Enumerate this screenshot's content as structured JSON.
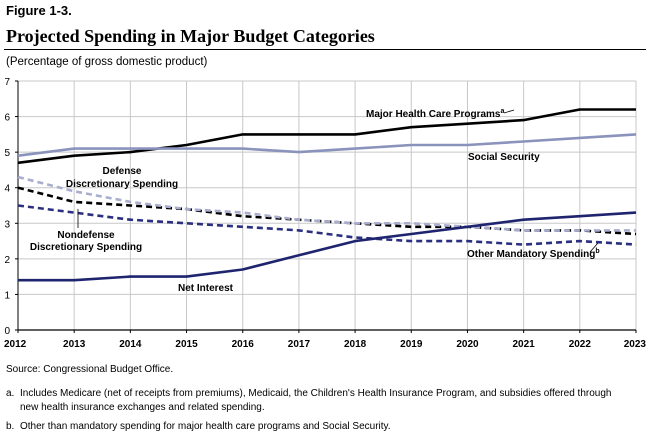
{
  "figure": {
    "label": "Figure 1-3.",
    "title": "Projected Spending in Major Budget Categories",
    "subtitle": "(Percentage of gross domestic product)"
  },
  "chart_data": {
    "type": "line",
    "title": "Projected Spending in Major Budget Categories",
    "ylabel": "Percentage of gross domestic product",
    "xlabel": "",
    "x": [
      2012,
      2013,
      2014,
      2015,
      2016,
      2017,
      2018,
      2019,
      2020,
      2021,
      2022,
      2023
    ],
    "x_tick_labels": [
      "2012",
      "2013",
      "2014",
      "2015",
      "2016",
      "2017",
      "2018",
      "2019",
      "2020",
      "2021",
      "2022",
      "2023"
    ],
    "ylim": [
      0,
      7
    ],
    "y_ticks": [
      0,
      1,
      2,
      3,
      4,
      5,
      6,
      7
    ],
    "y_tick_labels": [
      "0",
      "1",
      "2",
      "3",
      "4",
      "5",
      "6",
      "7"
    ],
    "grid": true,
    "series": [
      {
        "key": "health",
        "name": "Major Health Care Programs",
        "sup": "a",
        "color": "#000000",
        "dash": "solid",
        "values": [
          4.7,
          4.9,
          5.0,
          5.2,
          5.5,
          5.5,
          5.5,
          5.7,
          5.8,
          5.9,
          6.2,
          6.2
        ]
      },
      {
        "key": "ss",
        "name": "Social Security",
        "sup": "",
        "color": "#8a93bc",
        "dash": "solid",
        "values": [
          4.9,
          5.1,
          5.1,
          5.1,
          5.1,
          5.0,
          5.1,
          5.2,
          5.2,
          5.3,
          5.4,
          5.5
        ]
      },
      {
        "key": "defense",
        "name": "Defense Discretionary Spending",
        "sup": "",
        "color": "#000000",
        "dash": "dashed",
        "values": [
          4.0,
          3.6,
          3.5,
          3.4,
          3.2,
          3.1,
          3.0,
          2.9,
          2.9,
          2.8,
          2.8,
          2.7
        ]
      },
      {
        "key": "nondefense",
        "name": "Nondefense Discretionary Spending",
        "sup": "",
        "color": "#a9aecf",
        "dash": "dashed",
        "values": [
          4.3,
          3.9,
          3.6,
          3.4,
          3.3,
          3.1,
          3.0,
          3.0,
          2.9,
          2.8,
          2.8,
          2.8
        ]
      },
      {
        "key": "other",
        "name": "Other Mandatory Spending",
        "sup": "b",
        "color": "#2a2f80",
        "dash": "dashed",
        "values": [
          3.5,
          3.3,
          3.1,
          3.0,
          2.9,
          2.8,
          2.6,
          2.5,
          2.5,
          2.4,
          2.5,
          2.4
        ]
      },
      {
        "key": "interest",
        "name": "Net Interest",
        "sup": "",
        "color": "#1f246e",
        "dash": "solid",
        "values": [
          1.4,
          1.4,
          1.5,
          1.5,
          1.7,
          2.1,
          2.5,
          2.7,
          2.9,
          3.1,
          3.2,
          3.3
        ]
      }
    ],
    "annotations": {
      "health": "Major Health Care Programs",
      "health_sup": "a",
      "ss": "Social Security",
      "defense_line1": "Defense",
      "defense_line2": "Discretionary Spending",
      "nondefense_line1": "Nondefense",
      "nondefense_line2": "Discretionary Spending",
      "other": "Other Mandatory Spending",
      "other_sup": "b",
      "interest": "Net Interest"
    }
  },
  "source": "Source:   Congressional Budget Office.",
  "notes": {
    "a_key": "a.",
    "a_text": "Includes Medicare (net of receipts from premiums), Medicaid, the Children's Health Insurance Program, and subsidies offered through",
    "a_text2": "new health insurance exchanges and related spending.",
    "b_key": "b.",
    "b_text": "Other than mandatory spending for major health care programs and Social Security."
  }
}
